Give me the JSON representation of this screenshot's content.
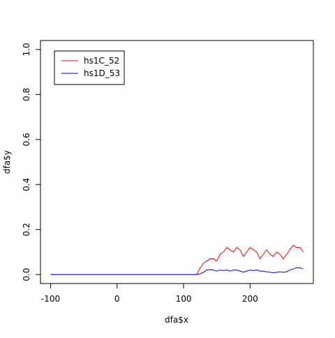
{
  "chart_data": {
    "type": "line",
    "x_label": "dfa$x",
    "y_label": "dfa$y",
    "x": [
      -100,
      120,
      125,
      130,
      135,
      140,
      145,
      150,
      155,
      160,
      165,
      170,
      175,
      180,
      185,
      190,
      195,
      200,
      205,
      210,
      215,
      220,
      225,
      230,
      235,
      240,
      245,
      250,
      255,
      260,
      265,
      270,
      275,
      280
    ],
    "series": [
      {
        "name": "hs1C_52",
        "color": "#ff0000",
        "values": [
          0,
          0,
          0.03,
          0.05,
          0.06,
          0.07,
          0.07,
          0.06,
          0.09,
          0.1,
          0.12,
          0.11,
          0.1,
          0.12,
          0.11,
          0.08,
          0.1,
          0.12,
          0.11,
          0.1,
          0.07,
          0.09,
          0.11,
          0.09,
          0.08,
          0.1,
          0.09,
          0.07,
          0.09,
          0.11,
          0.13,
          0.12,
          0.12,
          0.1
        ]
      },
      {
        "name": "hs1D_53",
        "color": "#0000ff",
        "values": [
          0,
          0,
          0.003,
          0.01,
          0.02,
          0.022,
          0.02,
          0.015,
          0.02,
          0.018,
          0.02,
          0.015,
          0.02,
          0.02,
          0.015,
          0.01,
          0.015,
          0.02,
          0.018,
          0.02,
          0.015,
          0.015,
          0.012,
          0.01,
          0.008,
          0.01,
          0.012,
          0.01,
          0.012,
          0.02,
          0.025,
          0.03,
          0.03,
          0.025
        ]
      }
    ],
    "xlim": [
      -115.2,
      295.2
    ],
    "xticks": [
      -100,
      0,
      100,
      200
    ],
    "ylim": [
      -0.04,
      1.04
    ],
    "yticks": [
      {
        "value": 0,
        "label": "0.0"
      },
      0.2,
      0.4,
      0.6,
      0.8,
      {
        "value": 1,
        "label": "1.0"
      }
    ],
    "legend": "top-left"
  }
}
